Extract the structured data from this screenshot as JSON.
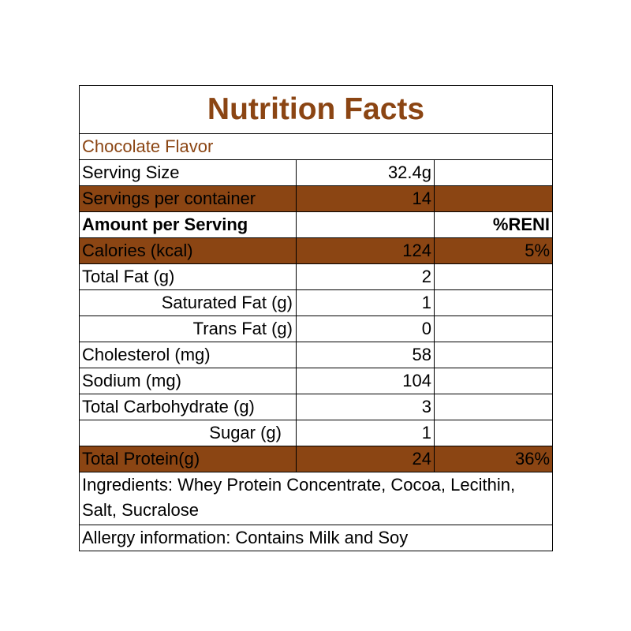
{
  "title": "Nutrition Facts",
  "flavor": "Chocolate Flavor",
  "colors": {
    "accent": "#8B4513",
    "border": "#000000",
    "background": "#ffffff"
  },
  "serving_size": {
    "label": "Serving Size",
    "value": "32.4g"
  },
  "servings_per_container": {
    "label": "Servings per container",
    "value": "14"
  },
  "amount_header": {
    "label": "Amount per Serving",
    "pct_label": "%RENI"
  },
  "nutrients": [
    {
      "label": "Calories (kcal)",
      "value": "124",
      "pct": "5%"
    },
    {
      "label": "Total Fat (g)",
      "value": "2",
      "pct": ""
    },
    {
      "label": "Saturated Fat (g)",
      "value": "1",
      "pct": ""
    },
    {
      "label": "Trans Fat (g)",
      "value": "0",
      "pct": ""
    },
    {
      "label": "Cholesterol (mg)",
      "value": "58",
      "pct": ""
    },
    {
      "label": "Sodium (mg)",
      "value": "104",
      "pct": ""
    },
    {
      "label": "Total Carbohydrate (g)",
      "value": "3",
      "pct": ""
    },
    {
      "label": "Sugar (g)",
      "value": "1",
      "pct": ""
    },
    {
      "label": "Total Protein(g)",
      "value": "24",
      "pct": "36%"
    }
  ],
  "ingredients": "Ingredients: Whey Protein Concentrate, Cocoa, Lecithin, Salt, Sucralose",
  "allergy": "Allergy information: Contains Milk and Soy"
}
